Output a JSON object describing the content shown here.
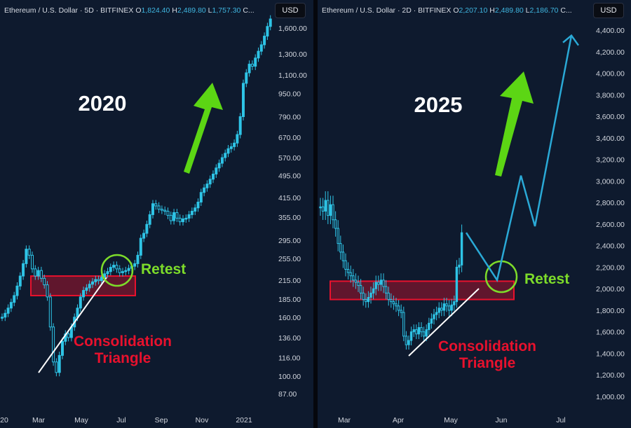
{
  "colors": {
    "up": "#2ec4e6",
    "down": "#2ec4e6",
    "zone": "#e8112d",
    "arrow": "#5cd614",
    "retest": "#7ddc2a",
    "label_red": "#e8112d",
    "price_header": "#3fb6e0"
  },
  "chart_data": [
    {
      "type": "candlestick",
      "header": {
        "pair": "Ethereum / U.S. Dollar · 5D · BITFINEX",
        "o_label": "O",
        "o": "1,824.40",
        "h_label": "H",
        "h": "2,489.80",
        "l_label": "L",
        "l": "1,757.30",
        "c_label": "C..."
      },
      "currency": "USD",
      "year_label": "2020",
      "y_scale": "log",
      "y_ticks": [
        "1,600.00",
        "1,300.00",
        "1,100.00",
        "950.00",
        "790.00",
        "670.00",
        "570.00",
        "495.00",
        "415.00",
        "355.00",
        "295.00",
        "255.00",
        "215.00",
        "185.00",
        "160.00",
        "136.00",
        "116.00",
        "100.00",
        "87.00"
      ],
      "x_ticks": [
        "20",
        "Mar",
        "May",
        "Jul",
        "Sep",
        "Nov",
        "2021"
      ],
      "zone": [
        190,
        222
      ],
      "retest_label": "Retest",
      "triangle_label": [
        "Consolidation",
        "Triangle"
      ],
      "close_series": [
        160,
        165,
        172,
        180,
        190,
        205,
        222,
        245,
        275,
        262,
        235,
        222,
        232,
        218,
        207,
        188,
        148,
        112,
        103,
        118,
        132,
        140,
        136,
        148,
        160,
        172,
        188,
        198,
        202,
        208,
        212,
        216,
        214,
        220,
        226,
        230,
        238,
        242,
        235,
        228,
        230,
        232,
        236,
        240,
        245,
        262,
        300,
        312,
        335,
        362,
        395,
        388,
        378,
        375,
        372,
        360,
        345,
        368,
        352,
        342,
        350,
        352,
        362,
        372,
        382,
        400,
        432,
        448,
        462,
        480,
        500,
        525,
        545,
        570,
        590,
        612,
        622,
        640,
        685,
        790,
        1030,
        1120,
        1200,
        1180,
        1260,
        1330,
        1400,
        1500,
        1620,
        1720
      ]
    },
    {
      "type": "candlestick",
      "header": {
        "pair": "Ethereum / U.S. Dollar · 2D · BITFINEX",
        "o_label": "O",
        "o": "2,207.10",
        "h_label": "H",
        "h": "2,489.80",
        "l_label": "L",
        "l": "2,186.70",
        "c_label": "C..."
      },
      "currency": "USD",
      "year_label": "2025",
      "y_scale": "linear",
      "y_ticks": [
        "4,400.00",
        "4,200.00",
        "4,000.00",
        "3,800.00",
        "3,600.00",
        "3,400.00",
        "3,200.00",
        "3,000.00",
        "2,800.00",
        "2,600.00",
        "2,400.00",
        "2,200.00",
        "2,000.00",
        "1,800.00",
        "1,600.00",
        "1,400.00",
        "1,200.00",
        "1,000.00"
      ],
      "x_ticks": [
        "Mar",
        "Apr",
        "May",
        "Jun",
        "Jul"
      ],
      "zone": [
        1900,
        2070
      ],
      "retest_label": "Retest",
      "triangle_label": [
        "Consolidation",
        "Triangle"
      ],
      "close_series": [
        2760,
        2720,
        2820,
        2680,
        2780,
        2640,
        2560,
        2420,
        2340,
        2260,
        2180,
        2150,
        2120,
        2080,
        2060,
        2030,
        1960,
        1900,
        1880,
        1920,
        1960,
        2000,
        2060,
        2040,
        2080,
        2020,
        1960,
        1900,
        1880,
        1860,
        1840,
        1800,
        1780,
        1560,
        1480,
        1520,
        1600,
        1620,
        1580,
        1640,
        1600,
        1560,
        1620,
        1680,
        1720,
        1760,
        1780,
        1820,
        1800,
        1860,
        1840,
        1800,
        1850,
        1880,
        2200,
        2220,
        2520
      ],
      "projection": [
        [
          2420,
          2520
        ],
        [
          2480,
          2080
        ],
        [
          2520,
          3050
        ],
        [
          2570,
          2580
        ],
        [
          2620,
          4350
        ]
      ]
    }
  ]
}
